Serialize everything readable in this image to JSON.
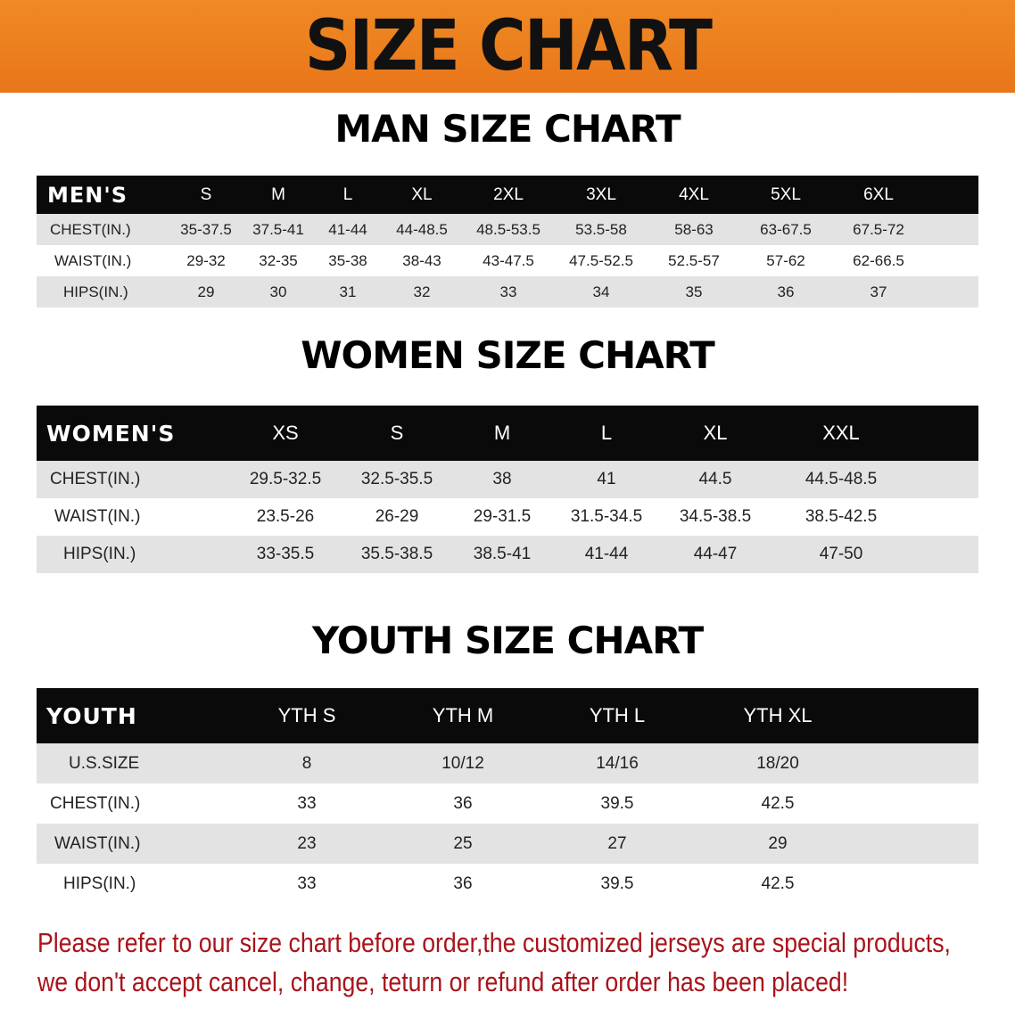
{
  "banner": {
    "title": "SIZE CHART",
    "color": "#ee8120"
  },
  "men": {
    "title": "MAN SIZE CHART",
    "header": [
      "MEN'S",
      "S",
      "M",
      "L",
      "XL",
      "2XL",
      "3XL",
      "4XL",
      "5XL",
      "6XL"
    ],
    "rows": [
      [
        "CHEST(IN.)",
        "35-37.5",
        "37.5-41",
        "41-44",
        "44-48.5",
        "48.5-53.5",
        "53.5-58",
        "58-63",
        "63-67.5",
        "67.5-72"
      ],
      [
        "WAIST(IN.)",
        "29-32",
        "32-35",
        "35-38",
        "38-43",
        "43-47.5",
        "47.5-52.5",
        "52.5-57",
        "57-62",
        "62-66.5"
      ],
      [
        "HIPS(IN.)",
        "29",
        "30",
        "31",
        "32",
        "33",
        "34",
        "35",
        "36",
        "37"
      ]
    ]
  },
  "women": {
    "title": "WOMEN SIZE CHART",
    "header": [
      "WOMEN'S",
      "XS",
      "S",
      "M",
      "L",
      "XL",
      "XXL"
    ],
    "rows": [
      [
        "CHEST(IN.)",
        "29.5-32.5",
        "32.5-35.5",
        "38",
        "41",
        "44.5",
        "44.5-48.5"
      ],
      [
        "WAIST(IN.)",
        "23.5-26",
        "26-29",
        "29-31.5",
        "31.5-34.5",
        "34.5-38.5",
        "38.5-42.5"
      ],
      [
        "HIPS(IN.)",
        "33-35.5",
        "35.5-38.5",
        "38.5-41",
        "41-44",
        "44-47",
        "47-50"
      ]
    ]
  },
  "youth": {
    "title": "YOUTH SIZE CHART",
    "header": [
      "YOUTH",
      "YTH S",
      "YTH M",
      "YTH L",
      "YTH XL"
    ],
    "rows": [
      [
        "U.S.SIZE",
        "8",
        "10/12",
        "14/16",
        "18/20"
      ],
      [
        "CHEST(IN.)",
        "33",
        "36",
        "39.5",
        "42.5"
      ],
      [
        "WAIST(IN.)",
        "23",
        "25",
        "27",
        "29"
      ],
      [
        "HIPS(IN.)",
        "33",
        "36",
        "39.5",
        "42.5"
      ]
    ]
  },
  "notice": {
    "line1": "Please refer to our size chart before order,the customized jerseys are special products,",
    "line2": "we don't accept cancel, change, teturn or refund after order has been placed!",
    "color": "#a8141c"
  }
}
